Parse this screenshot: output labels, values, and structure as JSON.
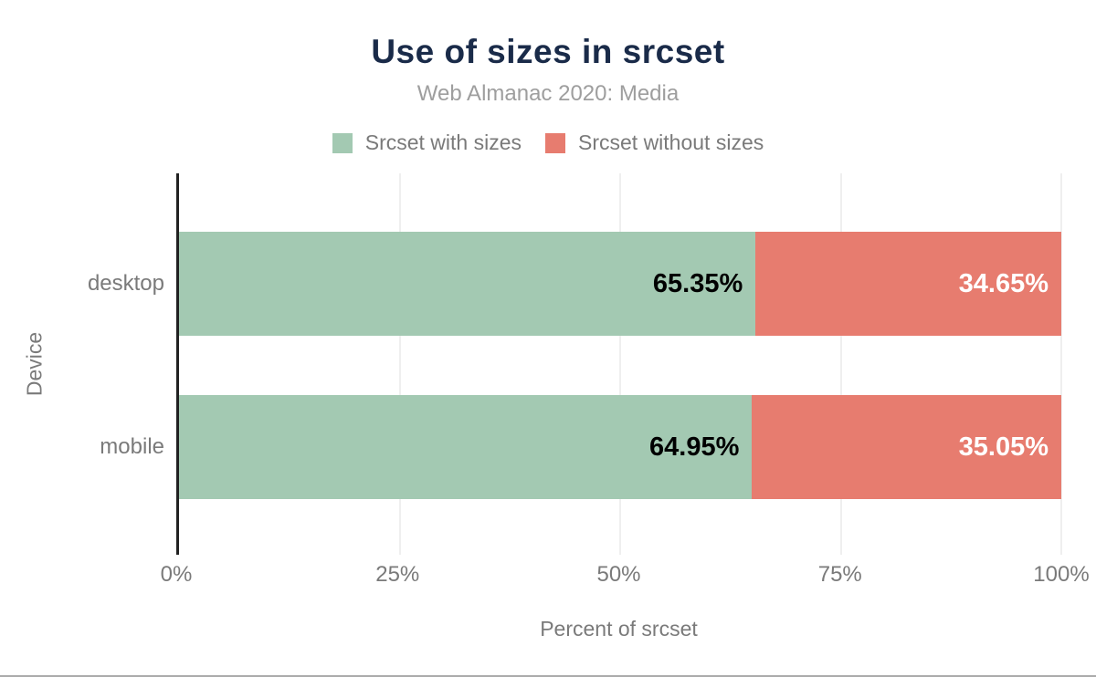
{
  "chart_data": {
    "type": "bar",
    "orientation": "horizontal",
    "stacked": true,
    "title": "Use of sizes in srcset",
    "subtitle": "Web Almanac 2020: Media",
    "xlabel": "Percent of srcset",
    "ylabel": "Device",
    "categories": [
      "desktop",
      "mobile"
    ],
    "series": [
      {
        "name": "Srcset with sizes",
        "color": "#a3c9b2",
        "values": [
          65.35,
          64.95
        ],
        "labels": [
          "65.35%",
          "64.95%"
        ]
      },
      {
        "name": "Srcset without sizes",
        "color": "#e77c6f",
        "values": [
          34.65,
          35.05
        ],
        "labels": [
          "34.65%",
          "35.05%"
        ]
      }
    ],
    "xlim": [
      0,
      100
    ],
    "xticks": [
      "0%",
      "25%",
      "50%",
      "75%",
      "100%"
    ],
    "grid": "vertical-light",
    "legend_position": "top"
  },
  "colors": {
    "title": "#1a2b49",
    "axis_text": "#7a7a7a",
    "subtitle_text": "#9e9e9e",
    "gridline": "#efefef",
    "axis_line": "#212121",
    "bar_label_on_green": "#000000",
    "bar_label_on_red": "#ffffff"
  }
}
